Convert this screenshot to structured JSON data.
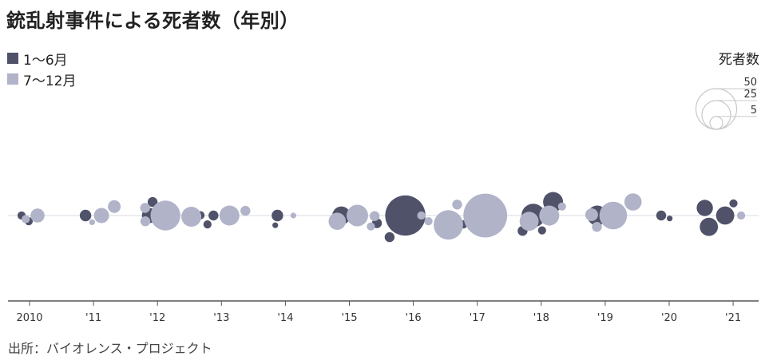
{
  "title": "銃乱射事件による死者数（年別）",
  "source": "出所：バイオレンス・プロジェクト",
  "colors": {
    "first_half": "#4f5269",
    "second_half": "#b1b3c9",
    "axis": "#555555",
    "baseline": "#e6e6ee",
    "ring": "#c8c8c8"
  },
  "legend": [
    {
      "label": "1～6月",
      "color": "#4f5269"
    },
    {
      "label": "7～12月",
      "color": "#b1b3c9"
    }
  ],
  "size_legend": {
    "title": "死者数",
    "values": [
      50,
      25,
      5
    ],
    "labels": [
      "50",
      "25",
      "5"
    ]
  },
  "chart_data": {
    "type": "scatter",
    "title": "銃乱射事件による死者数（年別）",
    "x_ticks": [
      "2010",
      "'11",
      "'12",
      "'13",
      "'14",
      "'15",
      "'16",
      "'17",
      "'18",
      "'19",
      "'20",
      "'21"
    ],
    "x_range": [
      2010,
      2021
    ],
    "series": [
      {
        "name": "1～6月",
        "points": [
          {
            "year": 2010,
            "deaths": 2
          },
          {
            "year": 2010,
            "deaths": 2
          },
          {
            "year": 2011,
            "deaths": 4
          },
          {
            "year": 2012,
            "deaths": 7
          },
          {
            "year": 2012,
            "deaths": 3
          },
          {
            "year": 2013,
            "deaths": 3
          },
          {
            "year": 2013,
            "deaths": 2
          },
          {
            "year": 2013,
            "deaths": 2
          },
          {
            "year": 2014,
            "deaths": 4
          },
          {
            "year": 2014,
            "deaths": 1
          },
          {
            "year": 2015,
            "deaths": 10
          },
          {
            "year": 2016,
            "deaths": 3
          },
          {
            "year": 2016,
            "deaths": 49
          },
          {
            "year": 2016,
            "deaths": 3
          },
          {
            "year": 2017,
            "deaths": 3
          },
          {
            "year": 2017,
            "deaths": 2
          },
          {
            "year": 2018,
            "deaths": 17
          },
          {
            "year": 2018,
            "deaths": 12
          },
          {
            "year": 2018,
            "deaths": 3
          },
          {
            "year": 2018,
            "deaths": 2
          },
          {
            "year": 2018,
            "deaths": 2
          },
          {
            "year": 2019,
            "deaths": 12
          },
          {
            "year": 2019,
            "deaths": 3
          },
          {
            "year": 2019,
            "deaths": 2
          },
          {
            "year": 2020,
            "deaths": 3
          },
          {
            "year": 2020,
            "deaths": 1
          },
          {
            "year": 2021,
            "deaths": 10
          },
          {
            "year": 2021,
            "deaths": 10
          },
          {
            "year": 2021,
            "deaths": 8
          },
          {
            "year": 2021,
            "deaths": 2
          }
        ]
      },
      {
        "name": "7～12月",
        "points": [
          {
            "year": 2010,
            "deaths": 6
          },
          {
            "year": 2010,
            "deaths": 2
          },
          {
            "year": 2011,
            "deaths": 7
          },
          {
            "year": 2011,
            "deaths": 5
          },
          {
            "year": 2011,
            "deaths": 1
          },
          {
            "year": 2012,
            "deaths": 27
          },
          {
            "year": 2012,
            "deaths": 12
          },
          {
            "year": 2012,
            "deaths": 3
          },
          {
            "year": 2012,
            "deaths": 3
          },
          {
            "year": 2013,
            "deaths": 12
          },
          {
            "year": 2013,
            "deaths": 3
          },
          {
            "year": 2014,
            "deaths": 1
          },
          {
            "year": 2015,
            "deaths": 14
          },
          {
            "year": 2015,
            "deaths": 9
          },
          {
            "year": 2015,
            "deaths": 3
          },
          {
            "year": 2015,
            "deaths": 2
          },
          {
            "year": 2016,
            "deaths": 2
          },
          {
            "year": 2016,
            "deaths": 2
          },
          {
            "year": 2017,
            "deaths": 58
          },
          {
            "year": 2017,
            "deaths": 26
          },
          {
            "year": 2017,
            "deaths": 3
          },
          {
            "year": 2018,
            "deaths": 12
          },
          {
            "year": 2018,
            "deaths": 11
          },
          {
            "year": 2018,
            "deaths": 2
          },
          {
            "year": 2019,
            "deaths": 23
          },
          {
            "year": 2019,
            "deaths": 9
          },
          {
            "year": 2019,
            "deaths": 5
          },
          {
            "year": 2019,
            "deaths": 3
          },
          {
            "year": 2021,
            "deaths": 2
          }
        ]
      }
    ],
    "grid": false,
    "legend_placement": "top-left"
  }
}
